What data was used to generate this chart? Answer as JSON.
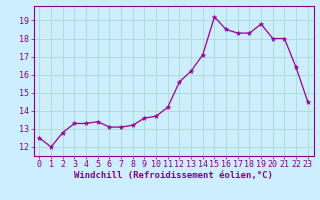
{
  "x": [
    0,
    1,
    2,
    3,
    4,
    5,
    6,
    7,
    8,
    9,
    10,
    11,
    12,
    13,
    14,
    15,
    16,
    17,
    18,
    19,
    20,
    21,
    22,
    23
  ],
  "y": [
    12.5,
    12.0,
    12.8,
    13.3,
    13.3,
    13.4,
    13.1,
    13.1,
    13.2,
    13.6,
    13.7,
    14.2,
    15.6,
    16.2,
    17.1,
    19.2,
    18.5,
    18.3,
    18.3,
    18.8,
    18.0,
    18.0,
    16.4,
    14.5
  ],
  "line_color": "#990099",
  "marker": "*",
  "marker_size": 3.5,
  "background_color": "#cceeff",
  "grid_color": "#aaddcc",
  "xlabel": "Windchill (Refroidissement éolien,°C)",
  "xlabel_fontsize": 6.5,
  "ylim": [
    11.5,
    19.8
  ],
  "xlim": [
    -0.5,
    23.5
  ],
  "yticks": [
    12,
    13,
    14,
    15,
    16,
    17,
    18,
    19
  ],
  "xticks": [
    0,
    1,
    2,
    3,
    4,
    5,
    6,
    7,
    8,
    9,
    10,
    11,
    12,
    13,
    14,
    15,
    16,
    17,
    18,
    19,
    20,
    21,
    22,
    23
  ],
  "tick_fontsize": 6.0,
  "tick_color": "#880088",
  "spine_color": "#880088",
  "label_color": "#880088"
}
